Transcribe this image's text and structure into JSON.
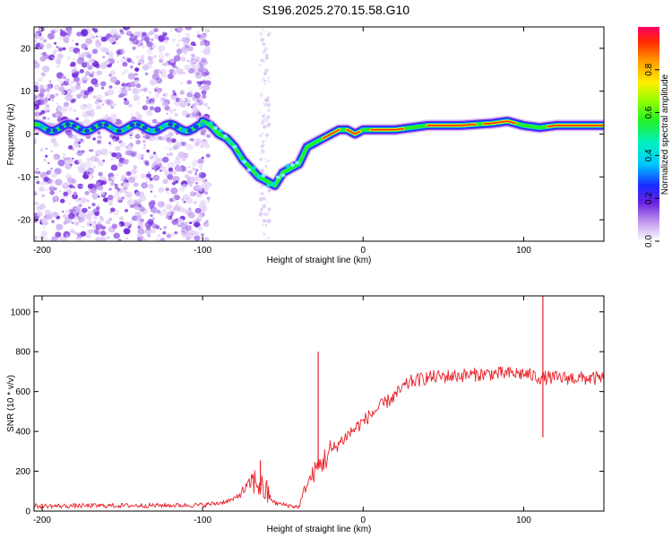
{
  "title": "S196.2025.270.15.58.G10",
  "charts": [
    {
      "type": "heatmap",
      "xlabel": "Height of straight line (km)",
      "ylabel": "Frequency (Hz)",
      "xlim": [
        -205,
        150
      ],
      "ylim": [
        -25,
        25
      ],
      "xticks": [
        -200,
        -100,
        0,
        100
      ],
      "yticks": [
        -20,
        -10,
        0,
        10,
        20
      ],
      "ridge": {
        "x": [
          -100,
          -95,
          -90,
          -85,
          -80,
          -75,
          -70,
          -65,
          -60,
          -55,
          -50,
          -45,
          -40,
          -35,
          -30,
          -25,
          -20,
          -15,
          -10,
          -5,
          0,
          10,
          20,
          40,
          60,
          80,
          90,
          100,
          110,
          120,
          150
        ],
        "y": [
          3,
          2,
          0,
          -1,
          -3,
          -6,
          -8,
          -10,
          -11,
          -12,
          -9,
          -8,
          -7,
          -3,
          -2,
          -1,
          0,
          1,
          1,
          0,
          1,
          1,
          1,
          2,
          2,
          2.5,
          3,
          2,
          1.5,
          2,
          2
        ]
      },
      "noise_band": [
        -205,
        -100
      ],
      "colorbar": {
        "label": "Normalized spectral amplitude",
        "ticks": [
          "0.0",
          "0.2",
          "0.4",
          "0.6",
          "0.8"
        ],
        "tick_values": [
          0,
          0.2,
          0.4,
          0.6,
          0.8
        ],
        "range": [
          0,
          1
        ]
      }
    },
    {
      "type": "line",
      "xlabel": "Height of straight line (km)",
      "ylabel": "SNR (10 * v/v)",
      "xlim": [
        -205,
        150
      ],
      "ylim": [
        0,
        1080
      ],
      "xticks": [
        -200,
        -100,
        0,
        100
      ],
      "yticks": [
        0,
        200,
        400,
        600,
        800,
        1000
      ],
      "color": "#e8222a",
      "profile": {
        "x": [
          -205,
          -100,
          -90,
          -80,
          -75,
          -70,
          -67,
          -62,
          -55,
          -40,
          -36,
          -30,
          -20,
          -10,
          0,
          10,
          20,
          25,
          30,
          40,
          60,
          80,
          100,
          110,
          150
        ],
        "y": [
          25,
          30,
          40,
          60,
          100,
          140,
          150,
          110,
          40,
          20,
          120,
          200,
          300,
          380,
          450,
          520,
          580,
          620,
          650,
          670,
          680,
          690,
          690,
          670,
          665
        ]
      },
      "spikes": [
        {
          "x": -64,
          "y": 255
        },
        {
          "x": -28,
          "y": 800
        },
        {
          "x": 112,
          "y": 1080
        },
        {
          "x": 112,
          "y": 370
        }
      ]
    }
  ]
}
